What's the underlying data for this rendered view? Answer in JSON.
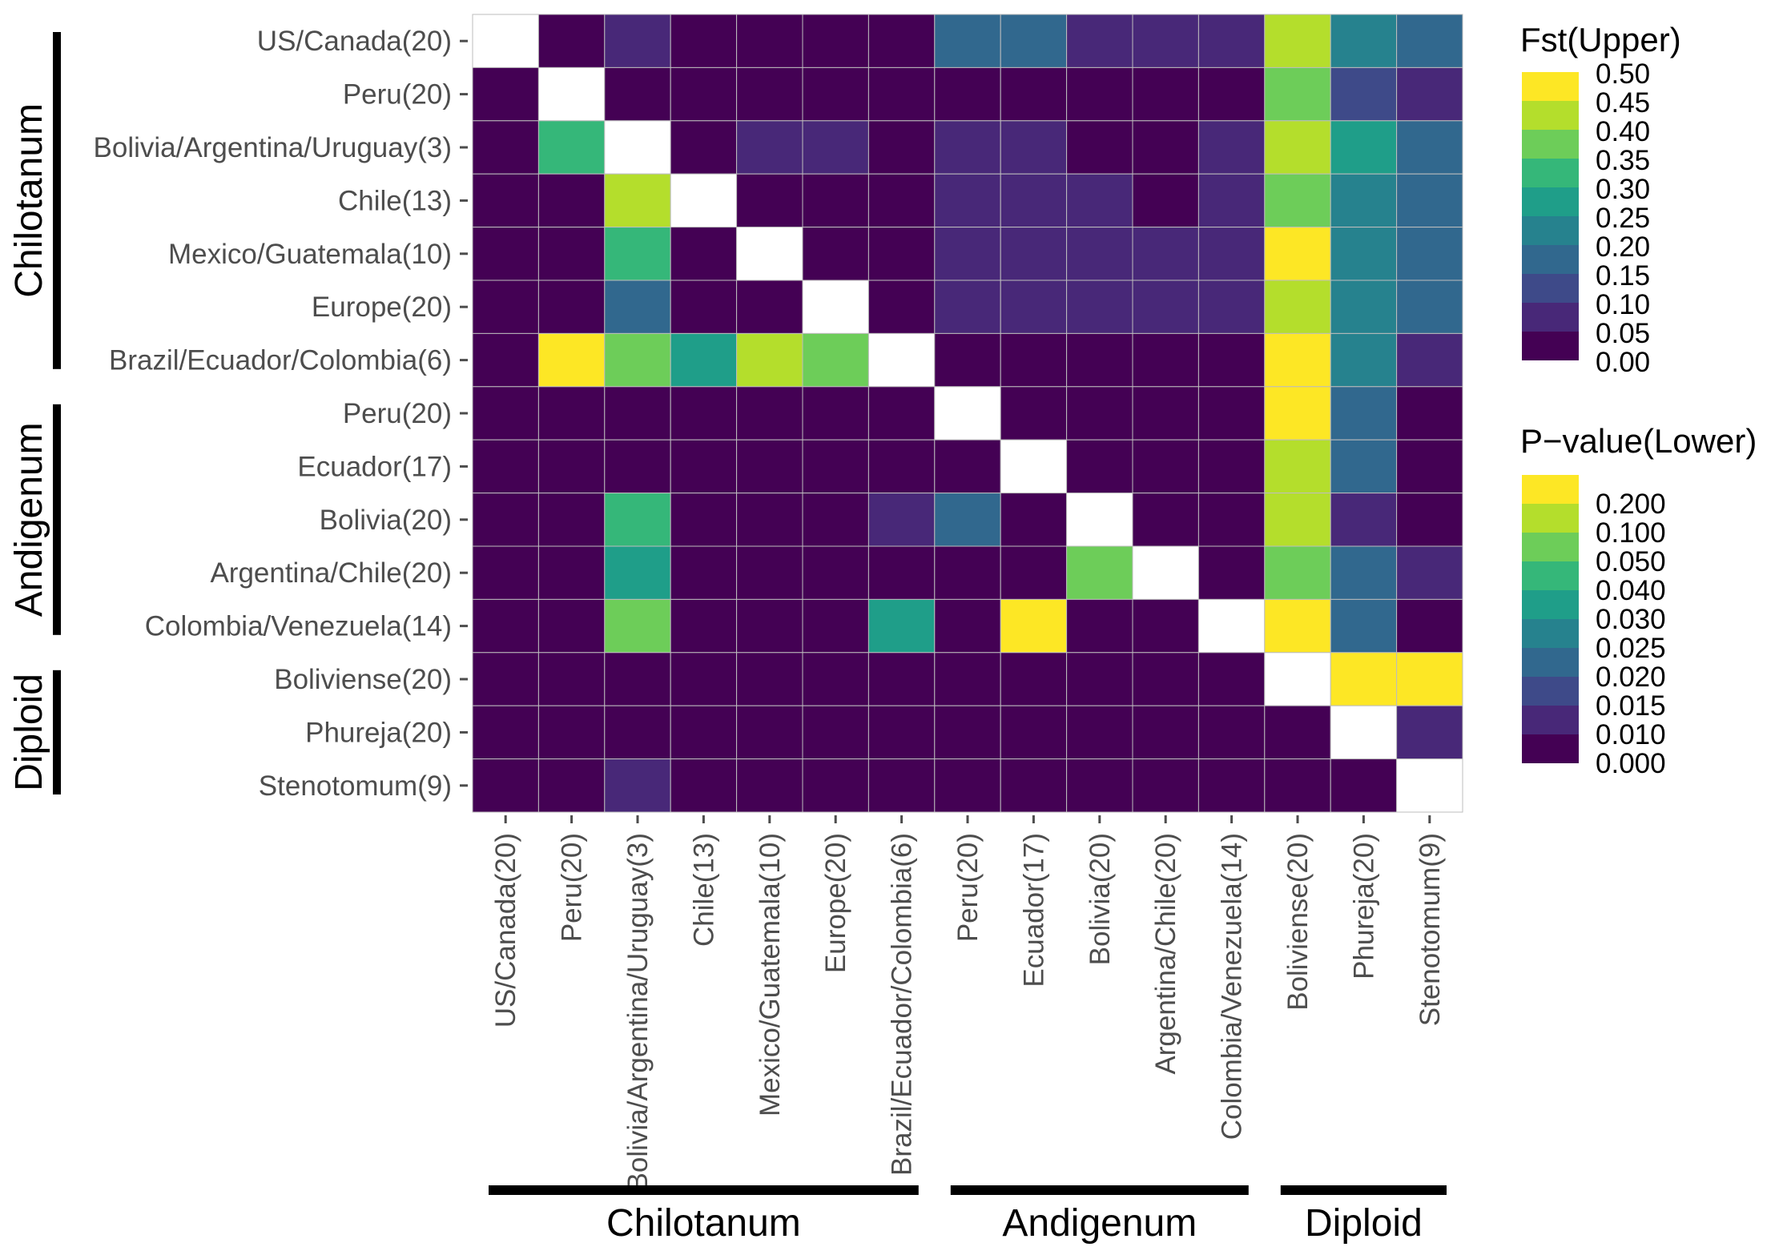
{
  "chart_data": {
    "type": "heatmap",
    "title": "",
    "xlabel": "",
    "ylabel": "",
    "rows": [
      "US/Canada(20)",
      "Peru(20)",
      "Bolivia/Argentina/Uruguay(3)",
      "Chile(13)",
      "Mexico/Guatemala(10)",
      "Europe(20)",
      "Brazil/Ecuador/Colombia(6)",
      "Peru(20)",
      "Ecuador(17)",
      "Bolivia(20)",
      "Argentina/Chile(20)",
      "Colombia/Venezuela(14)",
      "Boliviense(20)",
      "Phureja(20)",
      "Stenotomum(9)"
    ],
    "columns": [
      "US/Canada(20)",
      "Peru(20)",
      "Bolivia/Argentina/Uruguay(3)",
      "Chile(13)",
      "Mexico/Guatemala(10)",
      "Europe(20)",
      "Brazil/Ecuador/Colombia(6)",
      "Peru(20)",
      "Ecuador(17)",
      "Bolivia(20)",
      "Argentina/Chile(20)",
      "Colombia/Venezuela(14)",
      "Boliviense(20)",
      "Phureja(20)",
      "Stenotomum(9)"
    ],
    "note": "Each cell holds the index (0-9) of its colour-legend bin; upper triangle = Fst, lower triangle = P-value; null = diagonal (blank)",
    "cell_bins": [
      [
        null,
        0,
        1,
        0,
        0,
        0,
        0,
        3,
        3,
        1,
        1,
        1,
        8,
        4,
        3
      ],
      [
        0,
        null,
        0,
        0,
        0,
        0,
        0,
        0,
        0,
        0,
        0,
        0,
        7,
        2,
        1
      ],
      [
        0,
        6,
        null,
        0,
        1,
        1,
        0,
        1,
        1,
        0,
        0,
        1,
        8,
        5,
        3
      ],
      [
        0,
        0,
        8,
        null,
        0,
        0,
        0,
        1,
        1,
        1,
        0,
        1,
        7,
        4,
        3
      ],
      [
        0,
        0,
        6,
        0,
        null,
        0,
        0,
        1,
        1,
        1,
        1,
        1,
        9,
        4,
        3
      ],
      [
        0,
        0,
        3,
        0,
        0,
        null,
        0,
        1,
        1,
        1,
        1,
        1,
        8,
        4,
        3
      ],
      [
        0,
        9,
        7,
        5,
        8,
        7,
        null,
        0,
        0,
        0,
        0,
        0,
        9,
        4,
        1
      ],
      [
        0,
        0,
        0,
        0,
        0,
        0,
        0,
        null,
        0,
        0,
        0,
        0,
        9,
        3,
        0
      ],
      [
        0,
        0,
        0,
        0,
        0,
        0,
        0,
        0,
        null,
        0,
        0,
        0,
        8,
        3,
        0
      ],
      [
        0,
        0,
        6,
        0,
        0,
        0,
        1,
        3,
        0,
        null,
        0,
        0,
        8,
        1,
        0
      ],
      [
        0,
        0,
        5,
        0,
        0,
        0,
        0,
        0,
        0,
        7,
        null,
        0,
        7,
        3,
        1
      ],
      [
        0,
        0,
        7,
        0,
        0,
        0,
        5,
        0,
        9,
        0,
        0,
        null,
        9,
        3,
        0
      ],
      [
        0,
        0,
        0,
        0,
        0,
        0,
        0,
        0,
        0,
        0,
        0,
        0,
        null,
        9,
        9
      ],
      [
        0,
        0,
        0,
        0,
        0,
        0,
        0,
        0,
        0,
        0,
        0,
        0,
        0,
        null,
        1
      ],
      [
        0,
        0,
        1,
        0,
        0,
        0,
        0,
        0,
        0,
        0,
        0,
        0,
        0,
        0,
        null
      ]
    ],
    "palette": [
      "#440154",
      "#482878",
      "#3E4A89",
      "#31688E",
      "#26828E",
      "#1F9E89",
      "#35B779",
      "#6DCD59",
      "#B4DE2C",
      "#FDE725"
    ],
    "legends": [
      {
        "title": "Fst(Upper)",
        "labels": [
          "0.50",
          "0.45",
          "0.40",
          "0.35",
          "0.30",
          "0.25",
          "0.20",
          "0.15",
          "0.10",
          "0.05",
          "0.00"
        ]
      },
      {
        "title": "P−value(Lower)",
        "labels": [
          "0.200",
          "0.100",
          "0.050",
          "0.040",
          "0.030",
          "0.025",
          "0.020",
          "0.015",
          "0.010",
          "0.000"
        ]
      }
    ],
    "groups": [
      {
        "name": "Chilotanum",
        "start": 0,
        "end": 6
      },
      {
        "name": "Andigenum",
        "start": 7,
        "end": 11
      },
      {
        "name": "Diploid",
        "start": 12,
        "end": 14
      }
    ]
  }
}
